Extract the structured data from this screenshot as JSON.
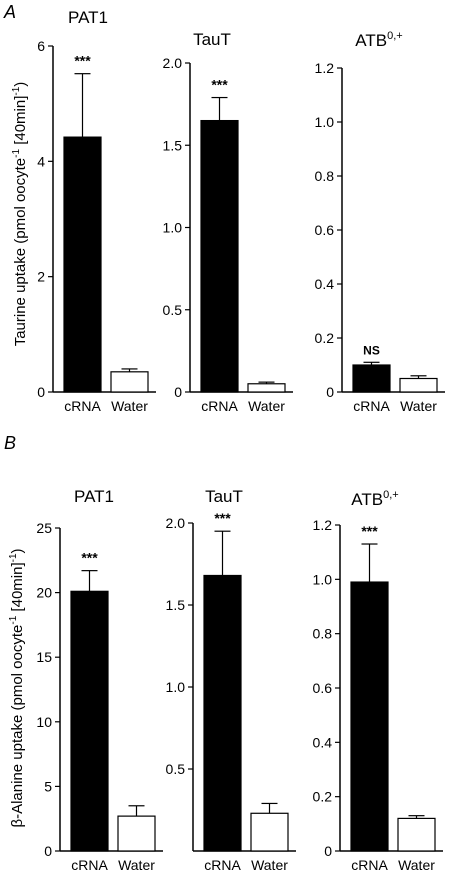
{
  "panels": [
    {
      "label": "A",
      "ylabel_main": "Taurine uptake (pmol oocyte",
      "ylabel_sup1": "-1",
      "ylabel_mid": " [40min]",
      "ylabel_sup2": "-1",
      "ylabel_end": ")"
    },
    {
      "label": "B",
      "ylabel_main": "β-Alanine uptake (pmol oocyte",
      "ylabel_sup1": "-1",
      "ylabel_mid": " [40min]",
      "ylabel_sup2": "-1",
      "ylabel_end": ")"
    }
  ],
  "chart_data": [
    {
      "type": "bar",
      "panel": "A",
      "title": "PAT1",
      "title_sup": "",
      "categories": [
        "cRNA",
        "Water"
      ],
      "values": [
        4.42,
        0.35
      ],
      "errors": [
        1.1,
        0.05
      ],
      "fills": [
        "#000000",
        "#ffffff"
      ],
      "annotations": [
        "***",
        ""
      ],
      "ylim": [
        0,
        6
      ],
      "ticks": [
        {
          "v": 0,
          "t": "0"
        },
        {
          "v": 2,
          "t": "2"
        },
        {
          "v": 4,
          "t": "4"
        },
        {
          "v": 6,
          "t": "6"
        }
      ]
    },
    {
      "type": "bar",
      "panel": "A",
      "title": "TauT",
      "title_sup": "",
      "categories": [
        "cRNA",
        "Water"
      ],
      "values": [
        1.65,
        0.05
      ],
      "errors": [
        0.14,
        0.01
      ],
      "fills": [
        "#000000",
        "#ffffff"
      ],
      "annotations": [
        "***",
        ""
      ],
      "ylim": [
        0,
        2.0
      ],
      "ticks": [
        {
          "v": 0,
          "t": "0"
        },
        {
          "v": 0.5,
          "t": "0.5"
        },
        {
          "v": 1.0,
          "t": "1.0"
        },
        {
          "v": 1.5,
          "t": "1.5"
        },
        {
          "v": 2.0,
          "t": "2.0"
        }
      ]
    },
    {
      "type": "bar",
      "panel": "A",
      "title": "ATB",
      "title_sup": "0,+",
      "categories": [
        "cRNA",
        "Water"
      ],
      "values": [
        0.1,
        0.05
      ],
      "errors": [
        0.01,
        0.01
      ],
      "fills": [
        "#000000",
        "#ffffff"
      ],
      "annotations": [
        "NS",
        ""
      ],
      "ylim": [
        0,
        1.2
      ],
      "ticks": [
        {
          "v": 0,
          "t": "0"
        },
        {
          "v": 0.2,
          "t": "0.2"
        },
        {
          "v": 0.4,
          "t": "0.4"
        },
        {
          "v": 0.6,
          "t": "0.6"
        },
        {
          "v": 0.8,
          "t": "0.8"
        },
        {
          "v": 1.0,
          "t": "1.0"
        },
        {
          "v": 1.2,
          "t": "1.2"
        }
      ]
    },
    {
      "type": "bar",
      "panel": "B",
      "title": "PAT1",
      "title_sup": "",
      "categories": [
        "cRNA",
        "Water"
      ],
      "values": [
        20.1,
        2.7
      ],
      "errors": [
        1.6,
        0.8
      ],
      "fills": [
        "#000000",
        "#ffffff"
      ],
      "annotations": [
        "***",
        ""
      ],
      "ylim": [
        0,
        25
      ],
      "ticks": [
        {
          "v": 0,
          "t": "0"
        },
        {
          "v": 5,
          "t": "5"
        },
        {
          "v": 10,
          "t": "10"
        },
        {
          "v": 15,
          "t": "15"
        },
        {
          "v": 20,
          "t": "20"
        },
        {
          "v": 25,
          "t": "25"
        }
      ]
    },
    {
      "type": "bar",
      "panel": "B",
      "title": "TauT",
      "title_sup": "",
      "categories": [
        "cRNA",
        "Water"
      ],
      "values": [
        1.68,
        0.23
      ],
      "errors": [
        0.27,
        0.06
      ],
      "fills": [
        "#000000",
        "#ffffff"
      ],
      "annotations": [
        "***",
        ""
      ],
      "ylim": [
        0,
        2.0
      ],
      "ticks": [
        {
          "v": 0.5,
          "t": "0.5"
        },
        {
          "v": 1.0,
          "t": "1.0"
        },
        {
          "v": 1.5,
          "t": "1.5"
        },
        {
          "v": 2.0,
          "t": "2.0"
        }
      ]
    },
    {
      "type": "bar",
      "panel": "B",
      "title": "ATB",
      "title_sup": "0,+",
      "categories": [
        "cRNA",
        "Water"
      ],
      "values": [
        0.99,
        0.12
      ],
      "errors": [
        0.14,
        0.01
      ],
      "fills": [
        "#000000",
        "#ffffff"
      ],
      "annotations": [
        "***",
        ""
      ],
      "ylim": [
        0,
        1.2
      ],
      "ticks": [
        {
          "v": 0,
          "t": "0"
        },
        {
          "v": 0.2,
          "t": "0.2"
        },
        {
          "v": 0.4,
          "t": "0.4"
        },
        {
          "v": 0.6,
          "t": "0.6"
        },
        {
          "v": 0.8,
          "t": "0.8"
        },
        {
          "v": 1.0,
          "t": "1.0"
        },
        {
          "v": 1.2,
          "t": "1.2"
        }
      ]
    }
  ]
}
